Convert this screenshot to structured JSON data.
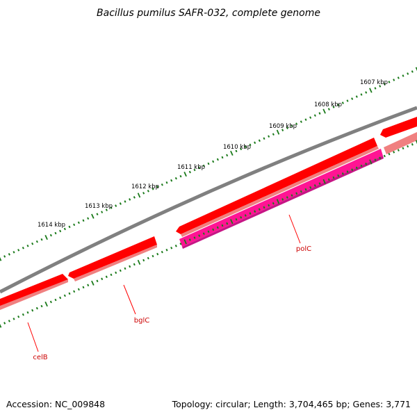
{
  "title": "Bacillus pumilus SAFR-032, complete genome",
  "footer": {
    "accession": "Accession: NC_009848",
    "topology": "Topology: circular; Length: 3,704,465 bp; Genes: 3,771"
  },
  "colors": {
    "backbone": "#808080",
    "forward_gene": "#ff0000",
    "forward_gene_light": "#f08080",
    "reverse_gene": "#ff1493",
    "reverse_gene_dark": "#c71585",
    "tick": "#1a7a1a",
    "gene_label": "#cc0000",
    "label_line": "#ff0000"
  },
  "outer_scale": {
    "ticks_kbp": [
      "1607 kbp",
      "1608 kbp",
      "1609 kbp",
      "1610 kbp",
      "1611 kbp",
      "1612 kbp",
      "1613 kbp",
      "1614 kbp"
    ]
  },
  "features": [
    {
      "name": "celB"
    },
    {
      "name": "bglC"
    },
    {
      "name": "polC"
    }
  ]
}
